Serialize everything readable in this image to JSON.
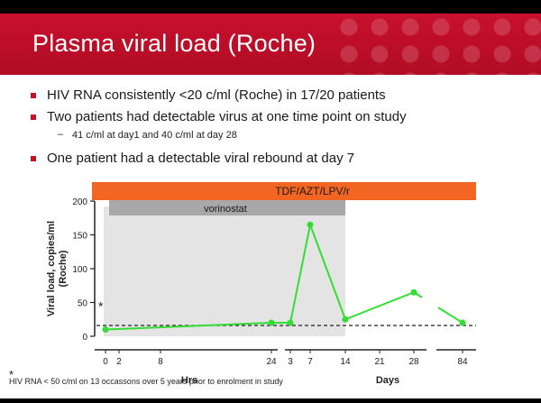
{
  "slide": {
    "title": "Plasma viral load (Roche)",
    "bullets": [
      "HIV RNA consistently <20 c/ml (Roche) in 17/20 patients",
      "Two patients had detectable virus at one time point on study",
      "One patient had a detectable viral rebound at day 7"
    ],
    "sub_bullet": "41 c/ml at day1 and 40 c/ml at day 28",
    "sub_dash": "–",
    "footnote_marker": "*",
    "footnote": "HIV RNA < 50 c/ml on 13 occassons over 5 years prior to enrolment in study",
    "colors": {
      "header": "#c8102e",
      "bullet": "#c8102e",
      "art_bar": "#f26522",
      "vorinostat_bar": "#a8a8a8",
      "shade": "#e4e4e4",
      "line": "#33dd33"
    }
  },
  "chart_data": {
    "type": "line",
    "ylabel": "Viral load, copies/ml (Roche)",
    "ylim": [
      0,
      200
    ],
    "yticks": [
      0,
      50,
      100,
      150,
      200
    ],
    "x_tick_labels": [
      "0",
      "2",
      "8",
      "24",
      "3",
      "7",
      "14",
      "21",
      "28",
      "84"
    ],
    "x_group_labels": [
      "Hrs",
      "Days"
    ],
    "threshold_label": "*",
    "threshold_value": 20,
    "bars": [
      {
        "label": "TDF/AZT/LPV/r",
        "from": "0",
        "to": "84"
      },
      {
        "label": "vorinostat",
        "from": "0",
        "to": "14"
      }
    ],
    "series": [
      {
        "x": [
          "0",
          "24",
          "3",
          "7",
          "14",
          "28",
          "84"
        ],
        "values": [
          10,
          20,
          20,
          165,
          25,
          65,
          20
        ]
      }
    ]
  }
}
